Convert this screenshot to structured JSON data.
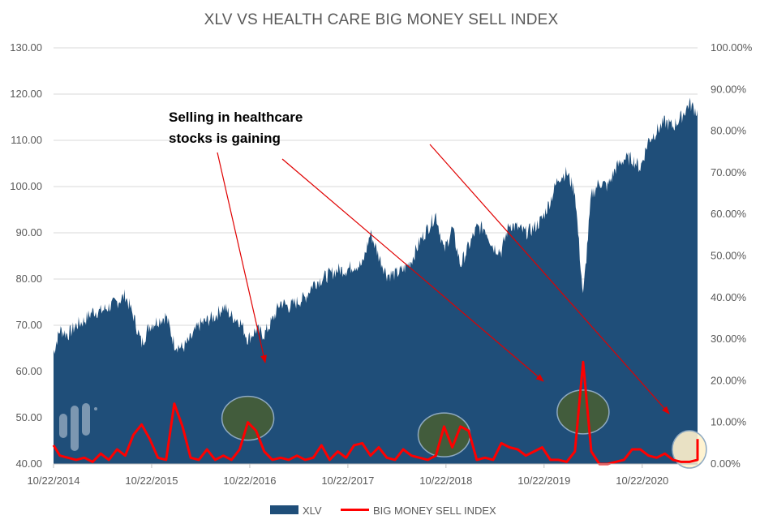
{
  "chart_data": {
    "type": "area+line",
    "title": "XLV VS HEALTH CARE BIG MONEY SELL INDEX",
    "y_left": {
      "min": 40,
      "max": 130,
      "ticks": [
        "40.00",
        "50.00",
        "60.00",
        "70.00",
        "80.00",
        "90.00",
        "100.00",
        "110.00",
        "120.00",
        "130.00"
      ]
    },
    "y_right": {
      "min": 0,
      "max": 100,
      "ticks": [
        "0.00%",
        "10.00%",
        "20.00%",
        "30.00%",
        "40.00%",
        "50.00%",
        "60.00%",
        "70.00%",
        "80.00%",
        "90.00%",
        "100.00%"
      ]
    },
    "x_ticks": [
      "10/22/2014",
      "10/22/2015",
      "10/22/2016",
      "10/22/2017",
      "10/22/2018",
      "10/22/2019",
      "10/22/2020"
    ],
    "x_range": [
      "10/22/2014",
      "5/15/2021"
    ],
    "legend_position": "bottom",
    "series": [
      {
        "name": "XLV",
        "kind": "area",
        "axis": "left",
        "color": "#1f4e79",
        "points": [
          [
            "10/22/2014",
            64
          ],
          [
            "11/2014",
            69
          ],
          [
            "12/2014",
            68
          ],
          [
            "1/2015",
            70
          ],
          [
            "2/2015",
            71
          ],
          [
            "3/2015",
            73
          ],
          [
            "4/2015",
            73
          ],
          [
            "5/2015",
            74
          ],
          [
            "6/2015",
            75
          ],
          [
            "7/2015",
            76.5
          ],
          [
            "8/2015",
            72
          ],
          [
            "9/2015",
            66
          ],
          [
            "10/2015",
            70
          ],
          [
            "11/2015",
            71
          ],
          [
            "12/2015",
            72
          ],
          [
            "1/2016",
            66
          ],
          [
            "2/2016",
            65
          ],
          [
            "3/2016",
            67
          ],
          [
            "4/2016",
            70
          ],
          [
            "5/2016",
            71
          ],
          [
            "6/2016",
            72
          ],
          [
            "7/2016",
            74
          ],
          [
            "8/2016",
            72
          ],
          [
            "9/2016",
            71
          ],
          [
            "10/2016",
            67
          ],
          [
            "11/2016",
            69
          ],
          [
            "12/2016",
            68
          ],
          [
            "1/2017",
            71
          ],
          [
            "2/2017",
            75
          ],
          [
            "3/2017",
            74
          ],
          [
            "4/2017",
            75
          ],
          [
            "5/2017",
            76
          ],
          [
            "6/2017",
            79
          ],
          [
            "7/2017",
            80
          ],
          [
            "8/2017",
            81
          ],
          [
            "9/2017",
            82
          ],
          [
            "10/2017",
            82
          ],
          [
            "11/2017",
            83
          ],
          [
            "12/2017",
            83
          ],
          [
            "1/2018",
            90
          ],
          [
            "2/2018",
            85
          ],
          [
            "3/2018",
            81
          ],
          [
            "4/2018",
            81
          ],
          [
            "5/2018",
            82
          ],
          [
            "6/2018",
            84
          ],
          [
            "7/2018",
            88
          ],
          [
            "8/2018",
            91
          ],
          [
            "9/2018",
            94
          ],
          [
            "10/2018",
            86
          ],
          [
            "11/2018",
            91
          ],
          [
            "12/2018",
            83
          ],
          [
            "1/2019",
            87
          ],
          [
            "2/2019",
            91
          ],
          [
            "3/2019",
            91
          ],
          [
            "4/2019",
            87
          ],
          [
            "5/2019",
            86
          ],
          [
            "6/2019",
            92
          ],
          [
            "7/2019",
            91
          ],
          [
            "8/2019",
            90
          ],
          [
            "9/2019",
            91
          ],
          [
            "10/2019",
            93
          ],
          [
            "11/2019",
            97
          ],
          [
            "12/2019",
            102
          ],
          [
            "1/2020",
            103
          ],
          [
            "2/2020",
            99
          ],
          [
            "3/2020",
            76
          ],
          [
            "4/2020",
            98
          ],
          [
            "5/2020",
            101
          ],
          [
            "6/2020",
            100
          ],
          [
            "7/2020",
            104
          ],
          [
            "8/2020",
            106
          ],
          [
            "9/2020",
            106
          ],
          [
            "10/2020",
            104
          ],
          [
            "11/2020",
            110
          ],
          [
            "12/2020",
            112
          ],
          [
            "1/2021",
            114
          ],
          [
            "2/2021",
            113
          ],
          [
            "3/2021",
            115
          ],
          [
            "4/2021",
            118
          ],
          [
            "5/2021",
            116
          ],
          [
            "5/15/2021",
            113
          ]
        ]
      },
      {
        "name": "BIG MONEY SELL INDEX",
        "kind": "line",
        "axis": "right",
        "color": "#ff0000",
        "points": [
          [
            "10/22/2014",
            4.5
          ],
          [
            "11/2014",
            2
          ],
          [
            "12/2014",
            1.5
          ],
          [
            "1/2015",
            1
          ],
          [
            "2/2015",
            1.5
          ],
          [
            "3/2015",
            0.5
          ],
          [
            "4/2015",
            2.5
          ],
          [
            "5/2015",
            1
          ],
          [
            "6/2015",
            3.5
          ],
          [
            "7/2015",
            2
          ],
          [
            "8/2015",
            7
          ],
          [
            "9/2015",
            9.5
          ],
          [
            "10/2015",
            6
          ],
          [
            "11/2015",
            1.5
          ],
          [
            "12/2015",
            1
          ],
          [
            "1/2016",
            14.5
          ],
          [
            "2/2016",
            9
          ],
          [
            "3/2016",
            1.5
          ],
          [
            "4/2016",
            1
          ],
          [
            "5/2016",
            3.5
          ],
          [
            "6/2016",
            1
          ],
          [
            "7/2016",
            2
          ],
          [
            "8/2016",
            1
          ],
          [
            "9/2016",
            3.5
          ],
          [
            "10/2016",
            10
          ],
          [
            "11/2016",
            8
          ],
          [
            "12/2016",
            3
          ],
          [
            "1/2017",
            1
          ],
          [
            "2/2017",
            1.5
          ],
          [
            "3/2017",
            1
          ],
          [
            "4/2017",
            2
          ],
          [
            "5/2017",
            1
          ],
          [
            "6/2017",
            1.5
          ],
          [
            "7/2017",
            4.5
          ],
          [
            "8/2017",
            1
          ],
          [
            "9/2017",
            3
          ],
          [
            "10/2017",
            1.5
          ],
          [
            "11/2017",
            4.5
          ],
          [
            "12/2017",
            5
          ],
          [
            "1/2018",
            2
          ],
          [
            "2/2018",
            4
          ],
          [
            "3/2018",
            1.5
          ],
          [
            "4/2018",
            1
          ],
          [
            "5/2018",
            3.5
          ],
          [
            "6/2018",
            2
          ],
          [
            "7/2018",
            1.5
          ],
          [
            "8/2018",
            1
          ],
          [
            "9/2018",
            2
          ],
          [
            "10/2018",
            9
          ],
          [
            "11/2018",
            4
          ],
          [
            "12/2018",
            9
          ],
          [
            "1/2019",
            8
          ],
          [
            "2/2019",
            1
          ],
          [
            "3/2019",
            1.5
          ],
          [
            "4/2019",
            1
          ],
          [
            "5/2019",
            5
          ],
          [
            "6/2019",
            4
          ],
          [
            "7/2019",
            3.5
          ],
          [
            "8/2019",
            2
          ],
          [
            "9/2019",
            3
          ],
          [
            "10/2019",
            4
          ],
          [
            "11/2019",
            1
          ],
          [
            "12/2019",
            1
          ],
          [
            "1/2020",
            0.5
          ],
          [
            "2/2020",
            3
          ],
          [
            "3/2020",
            24.5
          ],
          [
            "4/2020",
            3
          ],
          [
            "5/2020",
            0
          ],
          [
            "6/2020",
            0
          ],
          [
            "7/2020",
            0.5
          ],
          [
            "8/2020",
            1
          ],
          [
            "9/2020",
            3.5
          ],
          [
            "10/2020",
            3.5
          ],
          [
            "11/2020",
            2
          ],
          [
            "12/2020",
            1.5
          ],
          [
            "1/2021",
            2.5
          ],
          [
            "2/2021",
            1
          ],
          [
            "3/2021",
            0.5
          ],
          [
            "4/2021",
            0.5
          ],
          [
            "5/2021",
            1
          ],
          [
            "5/15/2021",
            6
          ]
        ]
      }
    ],
    "annotation": {
      "text_line1": "Selling in healthcare",
      "text_line2": "stocks is gaining"
    },
    "highlight_circles": [
      {
        "date": "10/2016",
        "value_pct": 11,
        "color": "#4f6228"
      },
      {
        "date": "10/2018",
        "value_pct": 7,
        "color": "#4f6228"
      },
      {
        "date": "3/2020",
        "value_pct": 12.5,
        "color": "#4f6228"
      },
      {
        "date": "4/2021",
        "value_pct": 3.5,
        "color": "#fff2cc"
      }
    ]
  }
}
